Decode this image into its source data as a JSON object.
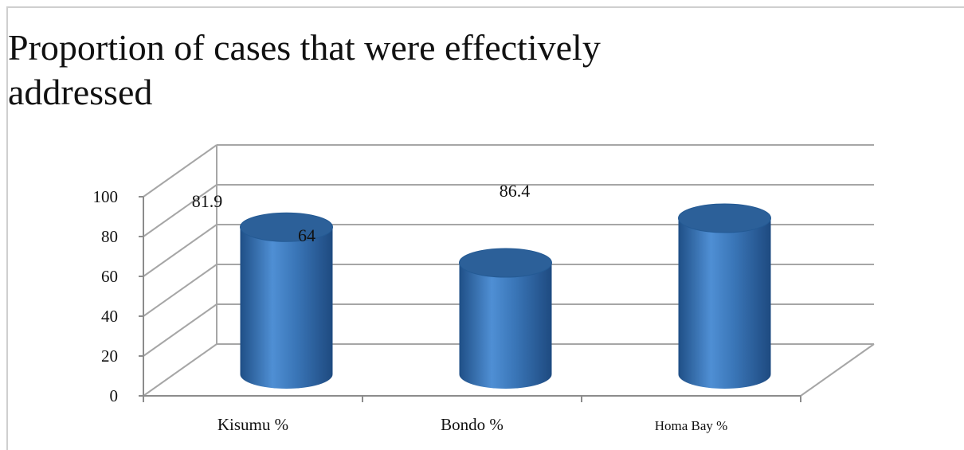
{
  "chart_data": {
    "type": "bar",
    "title": "Proportion of cases that were effectively addressed",
    "categories": [
      "Kisumu %",
      "Bondo %",
      "Homa Bay %"
    ],
    "series": [
      {
        "values": [
          81.9,
          64,
          86.4
        ]
      }
    ],
    "data_labels": [
      "81.9",
      "64",
      "86.4"
    ],
    "y_ticks": [
      "0",
      "20",
      "40",
      "60",
      "80",
      "100"
    ],
    "ylim": [
      0,
      100
    ],
    "grid": true,
    "style": "3d-cylinder",
    "colors": {
      "bar": "#3a76b8",
      "bar_dark": "#1f4f86",
      "bar_top": "#2c6099",
      "grid": "#a6a6a6"
    }
  }
}
